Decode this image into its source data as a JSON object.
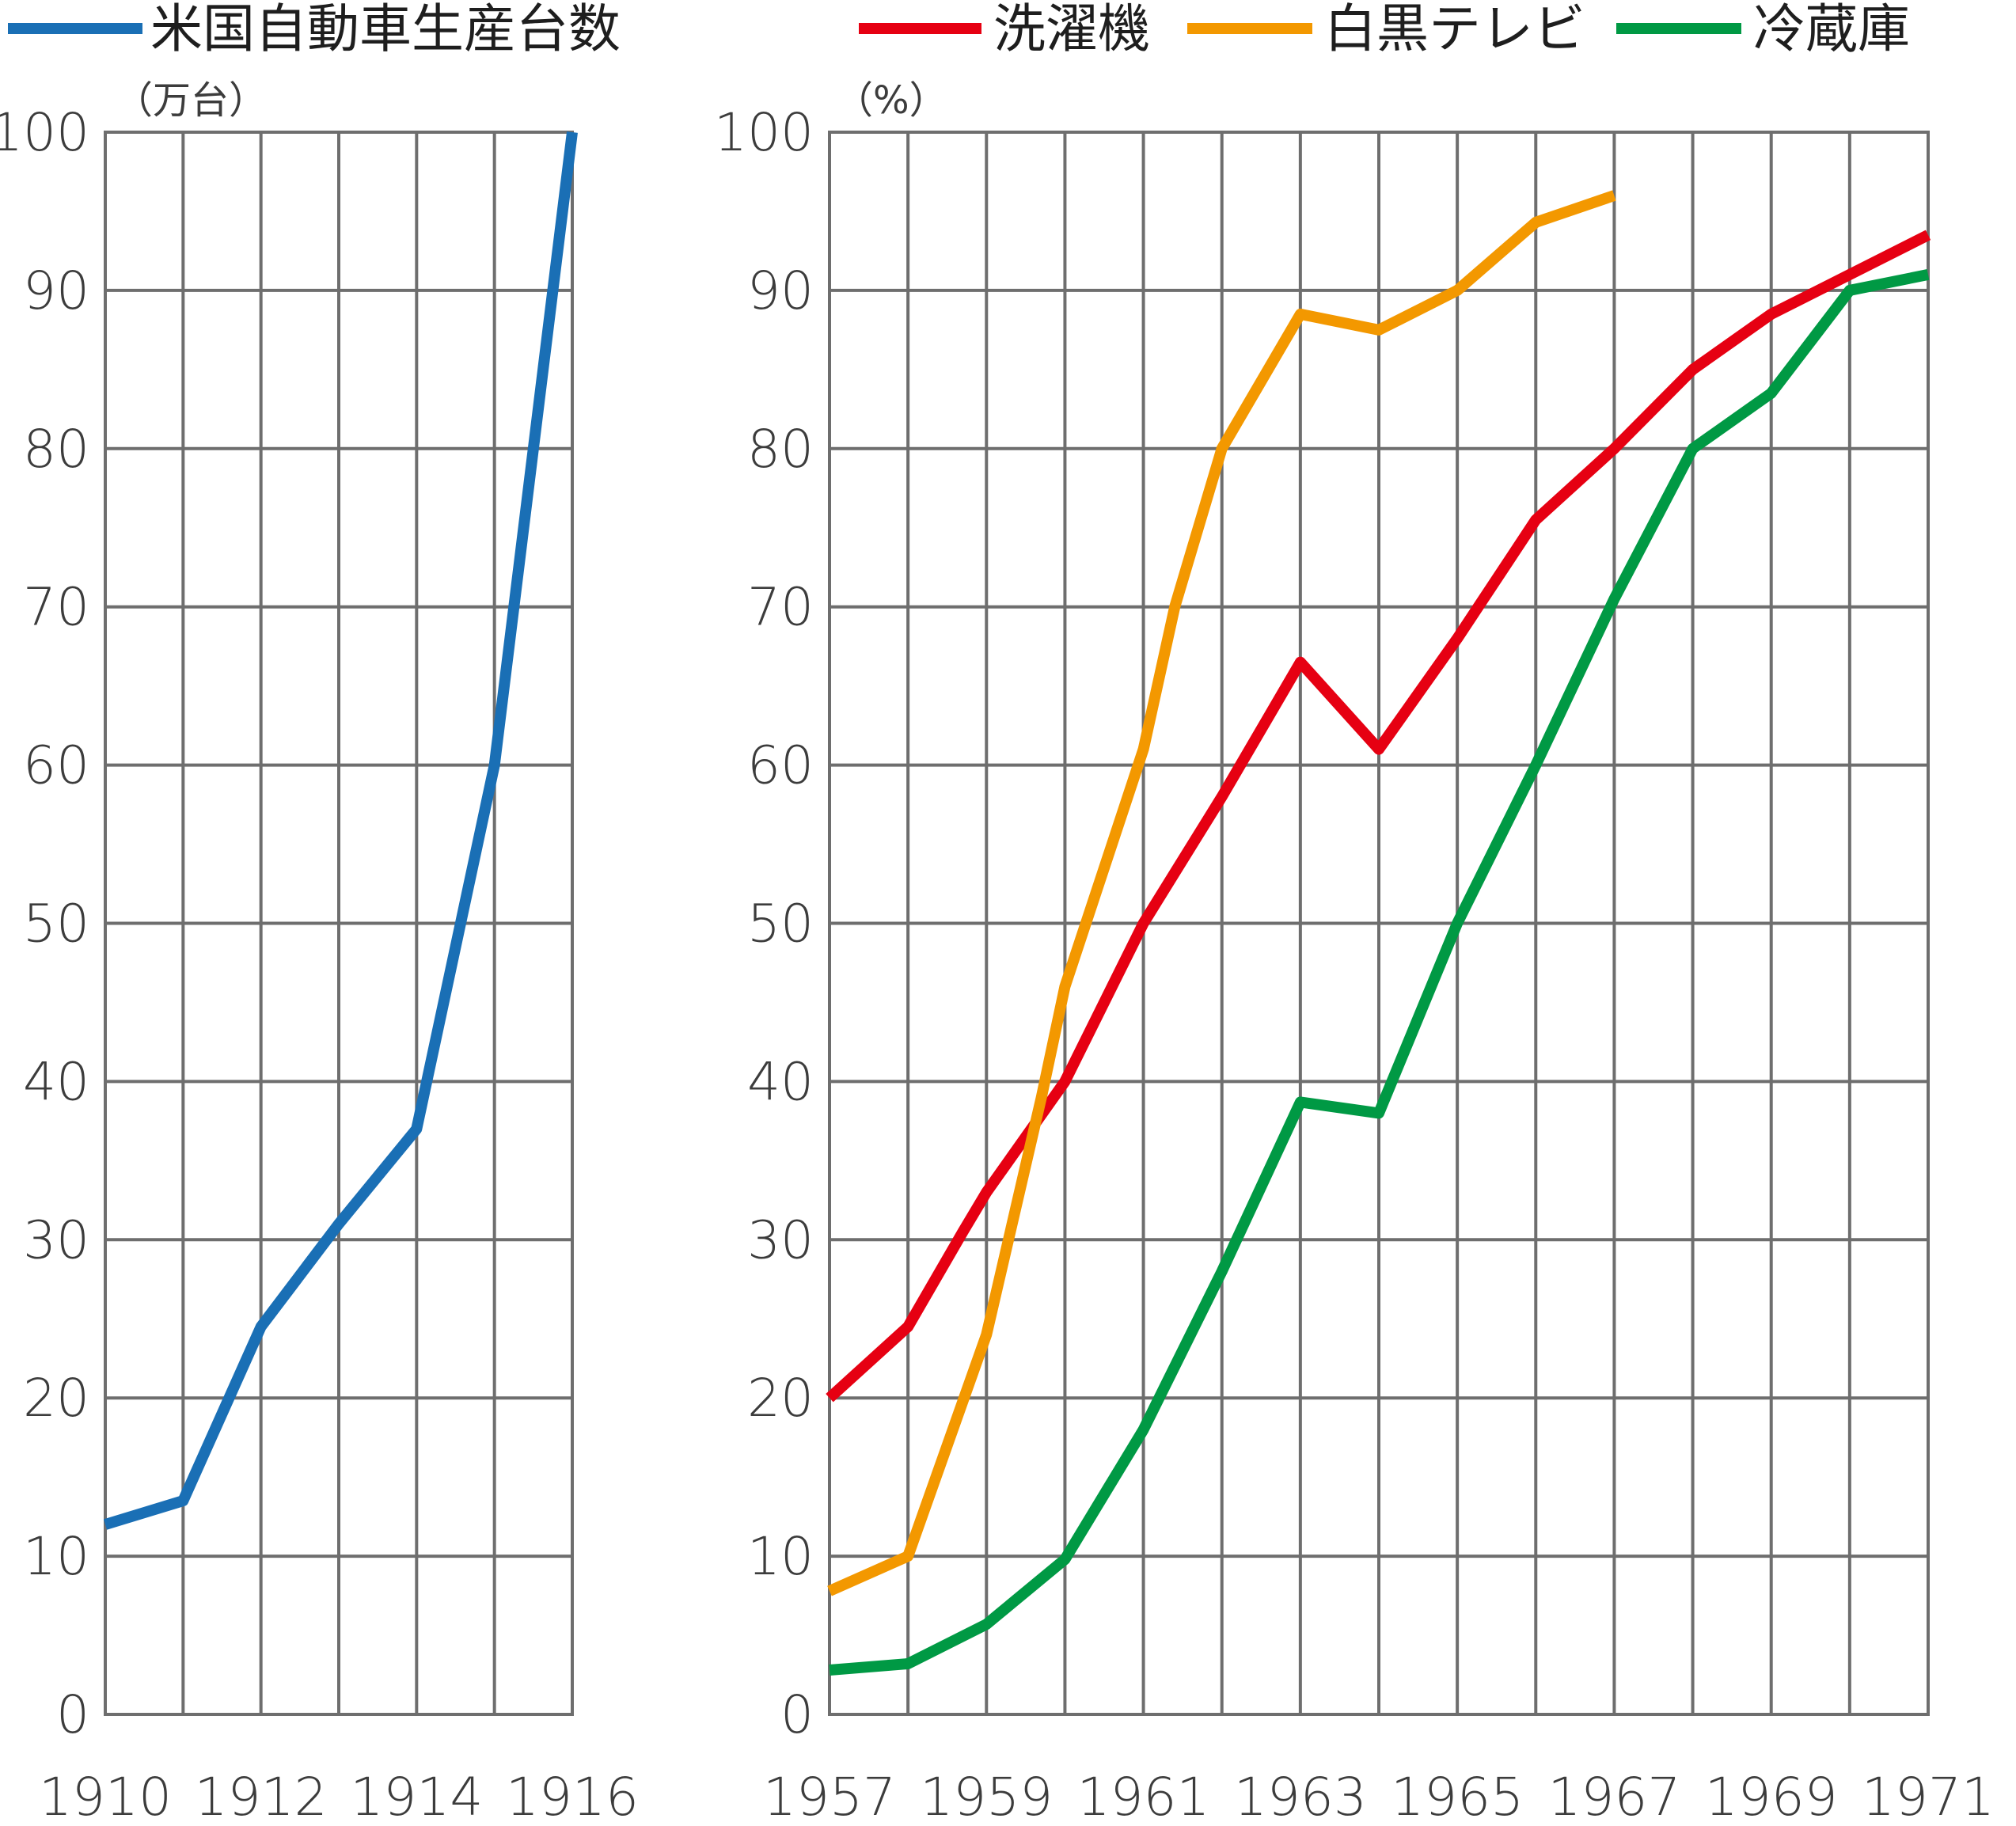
{
  "chart_data": [
    {
      "type": "line",
      "unit_label": "（万台）",
      "x_ticks": [
        "1910",
        "1912",
        "1914",
        "1916"
      ],
      "y_ticks": [
        "0",
        "10",
        "20",
        "30",
        "40",
        "50",
        "60",
        "70",
        "80",
        "90",
        "100"
      ],
      "xlim": [
        1910,
        1916
      ],
      "ylim": [
        0,
        100
      ],
      "grid": true,
      "legend_position": "top-left",
      "series": [
        {
          "name": "米国自動車生産台数",
          "color": "#1a6fb5",
          "x": [
            1910,
            1911,
            1912,
            1913,
            1914,
            1915,
            1916
          ],
          "y": [
            12,
            13.5,
            24.5,
            31,
            37,
            60,
            100
          ]
        }
      ]
    },
    {
      "type": "line",
      "unit_label": "（%）",
      "x_ticks": [
        "1957",
        "1959",
        "1961",
        "1963",
        "1965",
        "1967",
        "1969",
        "1971"
      ],
      "y_ticks": [
        "0",
        "10",
        "20",
        "30",
        "40",
        "50",
        "60",
        "70",
        "80",
        "90",
        "100"
      ],
      "xlim": [
        1957,
        1971
      ],
      "ylim": [
        0,
        100
      ],
      "grid": true,
      "legend_position": "top",
      "series": [
        {
          "name": "洗濯機",
          "color": "#e60012",
          "x": [
            1957,
            1958,
            1958.7,
            1959,
            1960,
            1961,
            1962,
            1963,
            1964,
            1965,
            1966,
            1967,
            1968,
            1969,
            1970,
            1971
          ],
          "y": [
            20,
            24.5,
            30.5,
            33,
            40,
            50,
            58,
            66.5,
            61,
            68,
            75.5,
            80,
            85,
            88.5,
            91,
            93.5
          ]
        },
        {
          "name": "白黒テレビ",
          "color": "#f39800",
          "x": [
            1957,
            1958,
            1959,
            1959.7,
            1960,
            1961,
            1961.4,
            1962,
            1963,
            1964,
            1965,
            1966,
            1967
          ],
          "y": [
            7.8,
            10,
            24,
            39,
            46,
            61,
            70,
            80,
            88.5,
            87.5,
            90,
            94.3,
            96
          ]
        },
        {
          "name": "冷蔵庫",
          "color": "#009944",
          "x": [
            1957,
            1958,
            1959,
            1960,
            1961,
            1962,
            1963,
            1964,
            1965,
            1966,
            1967,
            1968,
            1969,
            1970,
            1971
          ],
          "y": [
            2.8,
            3.2,
            5.7,
            9.8,
            18,
            28,
            38.7,
            38,
            50,
            60,
            70.5,
            80,
            83.5,
            90,
            91
          ]
        }
      ]
    }
  ]
}
